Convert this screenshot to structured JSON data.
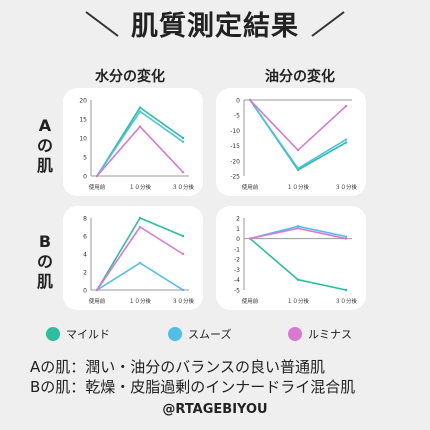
{
  "title": "肌質測定結果",
  "columns": {
    "water": "水分の変化",
    "oil": "油分の変化"
  },
  "rows": {
    "a": [
      "A",
      "の",
      "肌"
    ],
    "b": [
      "B",
      "の",
      "肌"
    ]
  },
  "legend": [
    {
      "name": "マイルド",
      "color": "#2bbf9d"
    },
    {
      "name": "スムーズ",
      "color": "#4fbfe6"
    },
    {
      "name": "ルミナス",
      "color": "#d97ad0"
    }
  ],
  "summary": [
    "Aの肌：潤い・油分のバランスの良い普通肌",
    "Bの肌：乾燥・皮脂過剰のインナードライ混合肌"
  ],
  "handle": "@RTAGEBIYOU",
  "chart_data": [
    {
      "type": "line",
      "panel": "A-water",
      "categories": [
        "使用前",
        "１０分後",
        "３０分後"
      ],
      "ylim": [
        0,
        20
      ],
      "yticks": [
        0,
        5,
        10,
        15,
        20
      ],
      "series": [
        {
          "name": "マイルド",
          "values": [
            0,
            18,
            10
          ]
        },
        {
          "name": "スムーズ",
          "values": [
            0,
            17,
            9
          ]
        },
        {
          "name": "ルミナス",
          "values": [
            0,
            13,
            1
          ]
        }
      ]
    },
    {
      "type": "line",
      "panel": "A-oil",
      "categories": [
        "使用前",
        "１０分後",
        "３０分後"
      ],
      "ylim": [
        -25,
        0
      ],
      "yticks": [
        0,
        -5,
        -10,
        -15,
        -20,
        -25
      ],
      "series": [
        {
          "name": "マイルド",
          "values": [
            0,
            -23,
            -14
          ]
        },
        {
          "name": "スムーズ",
          "values": [
            0,
            -22.5,
            -13
          ]
        },
        {
          "name": "ルミナス",
          "values": [
            0,
            -16.5,
            -2
          ]
        }
      ]
    },
    {
      "type": "line",
      "panel": "B-water",
      "categories": [
        "使用前",
        "１０分後",
        "３０分後"
      ],
      "ylim": [
        0,
        8
      ],
      "yticks": [
        0,
        2,
        4,
        6,
        8
      ],
      "series": [
        {
          "name": "マイルド",
          "values": [
            0,
            8,
            6
          ]
        },
        {
          "name": "スムーズ",
          "values": [
            0,
            3,
            0
          ]
        },
        {
          "name": "ルミナス",
          "values": [
            0,
            7,
            4
          ]
        }
      ]
    },
    {
      "type": "line",
      "panel": "B-oil",
      "categories": [
        "使用前",
        "１０分後",
        "３０分後"
      ],
      "ylim": [
        -5,
        2
      ],
      "yticks": [
        2,
        1,
        0,
        -1,
        -2,
        -3,
        -4,
        -5
      ],
      "series": [
        {
          "name": "マイルド",
          "values": [
            0,
            -4,
            -5
          ]
        },
        {
          "name": "スムーズ",
          "values": [
            0,
            1.2,
            0.2
          ]
        },
        {
          "name": "ルミナス",
          "values": [
            0,
            1,
            0
          ]
        }
      ]
    }
  ]
}
